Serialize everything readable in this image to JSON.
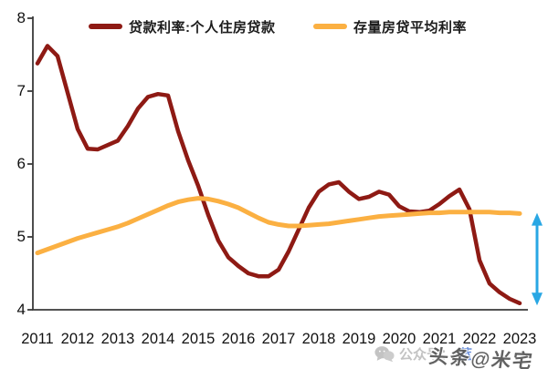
{
  "legend": {
    "items": [
      {
        "label": "贷款利率:个人住房贷款",
        "color": "#8E1A14"
      },
      {
        "label": "存量房贷平均利率",
        "color": "#FBB042"
      }
    ]
  },
  "watermark": {
    "wechat_icon": "wechat-chat-bubbles",
    "gray_text": "公众号：",
    "blue_text": "蓝",
    "overlay_text": "头条@米宅"
  },
  "chart_data": {
    "type": "line",
    "frequency": "quarterly",
    "x_start_year": 2011,
    "categories": [
      2011,
      2012,
      2013,
      2014,
      2015,
      2016,
      2017,
      2018,
      2019,
      2020,
      2021,
      2022,
      2023
    ],
    "yticks": [
      8,
      7,
      6,
      5,
      4
    ],
    "ylim": [
      4,
      8
    ],
    "grid": false,
    "legend_position": "top",
    "series": [
      {
        "name": "贷款利率:个人住房贷款",
        "color": "#8E1A14",
        "width": 4.5,
        "values": [
          7.38,
          7.62,
          7.48,
          6.98,
          6.48,
          6.21,
          6.2,
          6.26,
          6.32,
          6.52,
          6.76,
          6.92,
          6.96,
          6.94,
          6.45,
          6.05,
          5.7,
          5.3,
          4.95,
          4.72,
          4.6,
          4.5,
          4.46,
          4.46,
          4.55,
          4.8,
          5.1,
          5.4,
          5.62,
          5.72,
          5.75,
          5.62,
          5.52,
          5.55,
          5.62,
          5.58,
          5.42,
          5.35,
          5.34,
          5.36,
          5.45,
          5.56,
          5.65,
          5.38,
          4.68,
          4.36,
          4.24,
          4.15,
          4.09
        ]
      },
      {
        "name": "存量房贷平均利率",
        "color": "#FBB042",
        "width": 5,
        "values": [
          4.78,
          4.83,
          4.88,
          4.93,
          4.98,
          5.02,
          5.06,
          5.1,
          5.14,
          5.19,
          5.25,
          5.31,
          5.37,
          5.43,
          5.48,
          5.51,
          5.53,
          5.52,
          5.49,
          5.45,
          5.4,
          5.33,
          5.26,
          5.2,
          5.17,
          5.15,
          5.15,
          5.16,
          5.17,
          5.18,
          5.2,
          5.22,
          5.24,
          5.26,
          5.28,
          5.29,
          5.3,
          5.31,
          5.32,
          5.33,
          5.33,
          5.34,
          5.34,
          5.34,
          5.34,
          5.34,
          5.33,
          5.33,
          5.32
        ]
      }
    ],
    "annotation_arrow": {
      "meaning": "gap between outstanding-mortgage average rate and new loan rate",
      "color": "#29A7E4",
      "top_value": 5.33,
      "bottom_value": 4.06
    },
    "axis_color": "#3a3a3a"
  }
}
